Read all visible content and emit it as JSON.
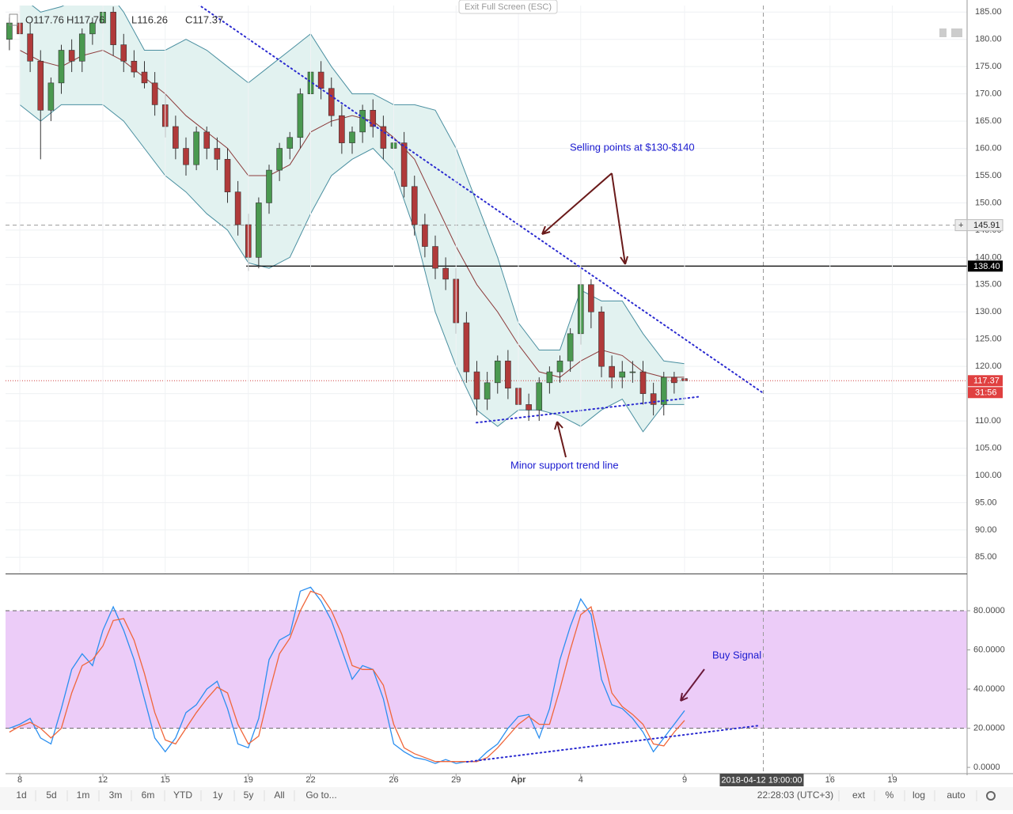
{
  "header": {
    "ohlc": [
      "O117.76",
      "H117.76",
      "L116.26",
      "C117.37"
    ],
    "exit_button": "Exit Full Screen (ESC)"
  },
  "annotations": [
    "Selling points at $130-$140",
    "Minor support trend line",
    "Buy Signal"
  ],
  "toolbar": {
    "ranges": [
      "1d",
      "5d",
      "1m",
      "3m",
      "6m",
      "YTD",
      "1y",
      "5y",
      "All"
    ],
    "goto": "Go to...",
    "clock": "22:28:03 (UTC+3)",
    "options": [
      "ext",
      "%",
      "log",
      "auto"
    ]
  },
  "chart_data": [
    {
      "type": "candlestick",
      "xlim": [
        7.314,
        53.6
      ],
      "ylim": [
        82,
        186.2
      ],
      "yticks": [
        {
          "value": 85,
          "label": "85.00"
        },
        {
          "value": 90,
          "label": "90.00"
        },
        {
          "value": 95,
          "label": "95.00"
        },
        {
          "value": 100,
          "label": "100.00"
        },
        {
          "value": 105,
          "label": "105.00"
        },
        {
          "value": 110,
          "label": "110.00"
        },
        {
          "value": 115,
          "label": "115.00"
        },
        {
          "value": 120,
          "label": "120.00"
        },
        {
          "value": 125,
          "label": "125.00"
        },
        {
          "value": 130,
          "label": "130.00"
        },
        {
          "value": 135,
          "label": "135.00"
        },
        {
          "value": 140,
          "label": "140.00"
        },
        {
          "value": 145,
          "label": "145.00"
        },
        {
          "value": 150,
          "label": "150.00"
        },
        {
          "value": 155,
          "label": "155.00"
        },
        {
          "value": 160,
          "label": "160.00"
        },
        {
          "value": 165,
          "label": "165.00"
        },
        {
          "value": 170,
          "label": "170.00"
        },
        {
          "value": 175,
          "label": "175.00"
        },
        {
          "value": 180,
          "label": "180.00"
        },
        {
          "value": 185,
          "label": "185.00"
        }
      ],
      "grid": true,
      "candle_colors": {
        "up": "#4a9950",
        "down": "#b03a3a"
      },
      "candles": {
        "x": [
          7.5,
          8,
          8.5,
          9,
          9.5,
          10,
          10.5,
          11,
          11.5,
          12,
          12.5,
          13,
          13.5,
          14,
          14.5,
          15,
          15.5,
          16,
          16.5,
          17,
          17.5,
          18,
          18.5,
          19,
          19.5,
          20,
          20.5,
          21,
          21.5,
          22,
          22.5,
          23,
          23.5,
          24,
          24.5,
          25,
          25.5,
          26,
          26.5,
          27,
          27.5,
          28,
          28.5,
          29,
          29.5,
          30,
          30.5,
          31,
          31.5,
          32,
          32.5,
          33,
          33.5,
          34,
          34.5,
          35,
          35.5,
          36,
          36.5,
          37,
          37.5,
          38,
          38.5,
          39,
          39.5,
          40
        ],
        "open": [
          180,
          183,
          181,
          176,
          167,
          172,
          178,
          176,
          181,
          183,
          185,
          179,
          176,
          174,
          172,
          168,
          164,
          160,
          157,
          163,
          160,
          158,
          152,
          146,
          140,
          150,
          156,
          160,
          162,
          170,
          174,
          171,
          166,
          161,
          163,
          167,
          164,
          160,
          161,
          153,
          146,
          142,
          138,
          136,
          128,
          119,
          114,
          117,
          121,
          116,
          113,
          112,
          117,
          119,
          121,
          126,
          135,
          130,
          120,
          118,
          119,
          119,
          115,
          113,
          118,
          117.76
        ],
        "high": [
          184,
          185,
          183,
          178,
          173,
          179,
          180,
          182,
          184,
          186,
          186,
          181,
          178,
          176,
          174,
          170,
          166,
          162,
          164,
          164,
          162,
          160,
          154,
          148,
          151,
          157,
          161,
          163,
          171,
          176,
          176,
          173,
          168,
          164,
          168,
          169,
          166,
          163,
          163,
          155,
          148,
          144,
          140,
          138,
          130,
          121,
          119,
          122,
          123,
          119,
          115,
          118,
          120,
          122,
          127,
          138,
          136,
          131,
          122,
          121,
          121,
          121,
          117,
          119,
          119,
          117.76
        ],
        "low": [
          178,
          180,
          174,
          158,
          165,
          170,
          174,
          174,
          179,
          181,
          177,
          174,
          173,
          171,
          166,
          162,
          158,
          155,
          156,
          158,
          156,
          150,
          144,
          137.5,
          138,
          148,
          154,
          158,
          160,
          168,
          169,
          164,
          159,
          159,
          161,
          162,
          158,
          158,
          151,
          144,
          140,
          136,
          134,
          126,
          117,
          111,
          112,
          115,
          114,
          111,
          110,
          110,
          115,
          117,
          119,
          124,
          127,
          118,
          116,
          116,
          117,
          113,
          111,
          111,
          115,
          116.26
        ],
        "close": [
          183,
          181,
          176,
          167,
          172,
          178,
          176,
          181,
          183,
          185,
          179,
          176,
          174,
          172,
          168,
          164,
          160,
          157,
          163,
          160,
          158,
          152,
          146,
          140,
          150,
          156,
          160,
          162,
          170,
          174,
          171,
          166,
          161,
          163,
          167,
          164,
          160,
          161,
          153,
          146,
          142,
          138,
          136,
          128,
          119,
          114,
          117,
          121,
          116,
          113,
          112,
          117,
          119,
          121,
          126,
          135,
          130,
          120,
          118,
          119,
          119,
          115,
          113,
          118,
          117,
          117.37
        ]
      },
      "bands": {
        "color": "#4a8fa0",
        "mid_color": "#8c3b3b",
        "fill": "#e2f2f0",
        "x": [
          8,
          9,
          10,
          11,
          12,
          13,
          14,
          15,
          16,
          17,
          18,
          19,
          20,
          21,
          22,
          23,
          24,
          25,
          26,
          27,
          28,
          29,
          30,
          31,
          32,
          33,
          34,
          35,
          36,
          37,
          38,
          39,
          40
        ],
        "upper": [
          188,
          185,
          186,
          188,
          190,
          185,
          178,
          178,
          180,
          178,
          175,
          172,
          175,
          178,
          181,
          175,
          170,
          170,
          168,
          168,
          167,
          160,
          150,
          140,
          128,
          123,
          123,
          134,
          132,
          132,
          126,
          121,
          120.5
        ],
        "middle": [
          178,
          176,
          175,
          177,
          178,
          176,
          173,
          170,
          166,
          163,
          160,
          155,
          155,
          157,
          163,
          165,
          166,
          165,
          162,
          158,
          150,
          142,
          135,
          130,
          124,
          119,
          118,
          121,
          123,
          122,
          119,
          118,
          118
        ],
        "lower": [
          168,
          165,
          168,
          168,
          168,
          165,
          160,
          155,
          152,
          148,
          145,
          139,
          138,
          140,
          148,
          155,
          158,
          160,
          156,
          145,
          130,
          120,
          112,
          109,
          112,
          112,
          111,
          109,
          112,
          114,
          108,
          113,
          113
        ]
      },
      "trend_lines": [
        {
          "x": [
            16.57,
            43.81
          ],
          "y": [
            186.45,
            115.04
          ],
          "color": "#2a2ad0"
        },
        {
          "x": [
            29.98,
            40.76
          ],
          "y": [
            109.67,
            114.46
          ],
          "color": "#2a2ad0"
        }
      ],
      "hline": {
        "value": 138.4,
        "label": "138.40",
        "x_start": 18.9
      },
      "last_price": 117.37,
      "countdown": "31:56",
      "crosshair": {
        "x": 43.79,
        "y": 145.91,
        "x_label": "2018-04-12 19:00:00"
      }
    },
    {
      "type": "line",
      "xlim": [
        7.314,
        53.6
      ],
      "ylim": [
        -3.2,
        98.2
      ],
      "yticks": [
        {
          "value": 0,
          "label": "0.0000"
        },
        {
          "value": 20,
          "label": "20.0000"
        },
        {
          "value": 40,
          "label": "40.0000"
        },
        {
          "value": 60,
          "label": "60.0000"
        },
        {
          "value": 80,
          "label": "80.0000"
        }
      ],
      "xticks": [
        8,
        12,
        15,
        19,
        22,
        26,
        29,
        {
          "value": 32,
          "label": "Apr"
        },
        {
          "value": 35,
          "label": "4"
        },
        {
          "value": 40,
          "label": "9"
        },
        {
          "value": 47,
          "label": "16"
        },
        {
          "value": 50,
          "label": "19"
        }
      ],
      "levels": [
        20,
        80
      ],
      "level_fill": "#ecccf8",
      "x": [
        7.5,
        8,
        8.5,
        9,
        9.5,
        10,
        10.5,
        11,
        11.5,
        12,
        12.5,
        13,
        13.5,
        14,
        14.5,
        15,
        15.5,
        16,
        16.5,
        17,
        17.5,
        18,
        18.5,
        19,
        19.5,
        20,
        20.5,
        21,
        21.5,
        22,
        22.5,
        23,
        23.5,
        24,
        24.5,
        25,
        25.5,
        26,
        26.5,
        27,
        27.5,
        28,
        28.5,
        29,
        29.5,
        30,
        30.5,
        31,
        31.5,
        32,
        32.5,
        33,
        33.5,
        34,
        34.5,
        35,
        35.5,
        36,
        36.5,
        37,
        37.5,
        38,
        38.5,
        39,
        39.5,
        40
      ],
      "series": [
        {
          "color": "#2b8ff0",
          "values": [
            20,
            22,
            25,
            15,
            12,
            30,
            50,
            58,
            52,
            70,
            82,
            70,
            55,
            35,
            15,
            8,
            15,
            28,
            32,
            40,
            44,
            30,
            12,
            10,
            25,
            55,
            65,
            68,
            90,
            92,
            85,
            75,
            60,
            45,
            52,
            50,
            35,
            12,
            8,
            5,
            4,
            2,
            4,
            2,
            3,
            3,
            8,
            12,
            20,
            26,
            27,
            15,
            30,
            55,
            72,
            86,
            78,
            45,
            32,
            30,
            25,
            18,
            8,
            15,
            22,
            29
          ]
        },
        {
          "color": "#f0663a",
          "values": [
            18,
            21,
            23,
            20,
            15,
            20,
            38,
            52,
            55,
            62,
            75,
            76,
            65,
            48,
            28,
            14,
            12,
            20,
            28,
            35,
            41,
            38,
            22,
            12,
            16,
            38,
            58,
            66,
            80,
            90,
            88,
            80,
            68,
            52,
            50,
            50,
            42,
            22,
            10,
            7,
            5,
            3,
            3,
            3,
            3,
            3,
            5,
            10,
            16,
            22,
            26,
            22,
            22,
            40,
            60,
            78,
            82,
            60,
            38,
            31,
            27,
            22,
            12,
            11,
            18,
            24
          ]
        }
      ],
      "trend_lines": [
        {
          "x": [
            29.52,
            43.62
          ],
          "y": [
            2.8,
            21.4
          ],
          "color": "#2a2ad0"
        }
      ],
      "crosshair": {
        "x": 43.79
      }
    }
  ]
}
